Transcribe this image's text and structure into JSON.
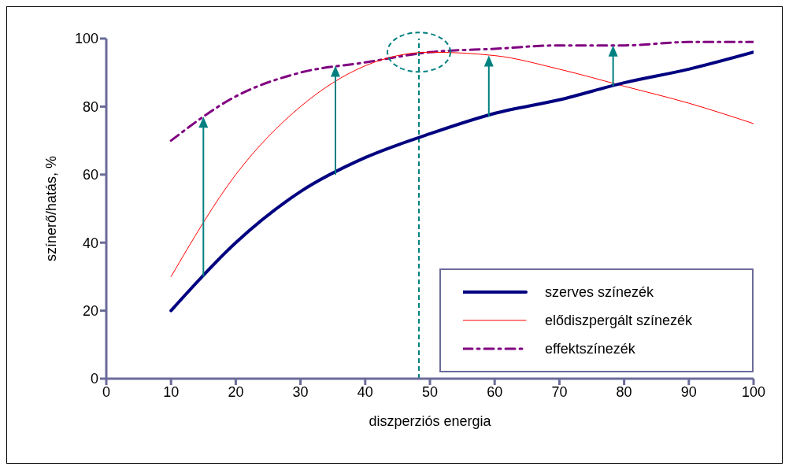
{
  "chart_data": {
    "type": "line",
    "xlabel": "diszperziós energia",
    "ylabel": "színerő/hatás, %",
    "x": [
      10,
      20,
      30,
      40,
      50,
      60,
      70,
      80,
      90,
      100
    ],
    "series": [
      {
        "name": "szerves színezék",
        "color": "#000080",
        "values": [
          20,
          40,
          55,
          65,
          72,
          78,
          82,
          87,
          91,
          96
        ],
        "line_style": "solid"
      },
      {
        "name": "elődiszpergált színezék",
        "color": "#ff0000",
        "values": [
          30,
          60,
          80,
          92,
          96,
          95,
          91,
          86,
          81,
          75
        ],
        "line_style": "solid"
      },
      {
        "name": "effektszínezék",
        "color": "#800080",
        "values": [
          70,
          83,
          90,
          93,
          96,
          97,
          98,
          98,
          99,
          99
        ],
        "line_style": "dashed"
      }
    ],
    "xlim": [
      0,
      100
    ],
    "xticks": [
      0,
      10,
      20,
      30,
      40,
      50,
      60,
      70,
      80,
      90,
      100
    ],
    "ylim": [
      0,
      100
    ],
    "yticks": [
      0,
      20,
      40,
      60,
      80,
      100
    ],
    "ref_lines": [
      {
        "axis": "x",
        "value": 48.3,
        "color": "#008080",
        "line_style": "dashed"
      }
    ],
    "grid": false,
    "legend": "bottom right",
    "marker": "none"
  }
}
